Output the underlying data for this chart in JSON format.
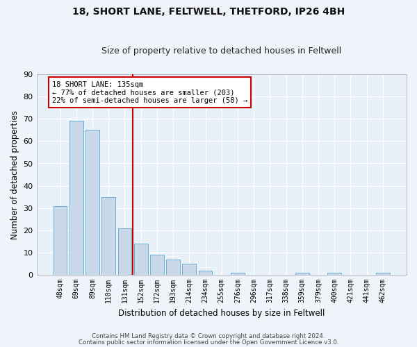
{
  "title1": "18, SHORT LANE, FELTWELL, THETFORD, IP26 4BH",
  "title2": "Size of property relative to detached houses in Feltwell",
  "xlabel": "Distribution of detached houses by size in Feltwell",
  "ylabel": "Number of detached properties",
  "categories": [
    "48sqm",
    "69sqm",
    "89sqm",
    "110sqm",
    "131sqm",
    "152sqm",
    "172sqm",
    "193sqm",
    "214sqm",
    "234sqm",
    "255sqm",
    "276sqm",
    "296sqm",
    "317sqm",
    "338sqm",
    "359sqm",
    "379sqm",
    "400sqm",
    "421sqm",
    "441sqm",
    "462sqm"
  ],
  "values": [
    31,
    69,
    65,
    35,
    21,
    14,
    9,
    7,
    5,
    2,
    0,
    1,
    0,
    0,
    0,
    1,
    0,
    1,
    0,
    0,
    1
  ],
  "bar_color": "#c9d9ea",
  "bar_edge_color": "#6aaed6",
  "background_color": "#e8f0f8",
  "figure_facecolor": "#f0f4fa",
  "grid_color": "#ffffff",
  "property_line_x": 4.5,
  "annotation_title": "18 SHORT LANE: 135sqm",
  "annotation_line1": "← 77% of detached houses are smaller (203)",
  "annotation_line2": "22% of semi-detached houses are larger (58) →",
  "annotation_box_color": "#cc0000",
  "ylim": [
    0,
    90
  ],
  "yticks": [
    0,
    10,
    20,
    30,
    40,
    50,
    60,
    70,
    80,
    90
  ],
  "footnote1": "Contains HM Land Registry data © Crown copyright and database right 2024.",
  "footnote2": "Contains public sector information licensed under the Open Government Licence v3.0."
}
